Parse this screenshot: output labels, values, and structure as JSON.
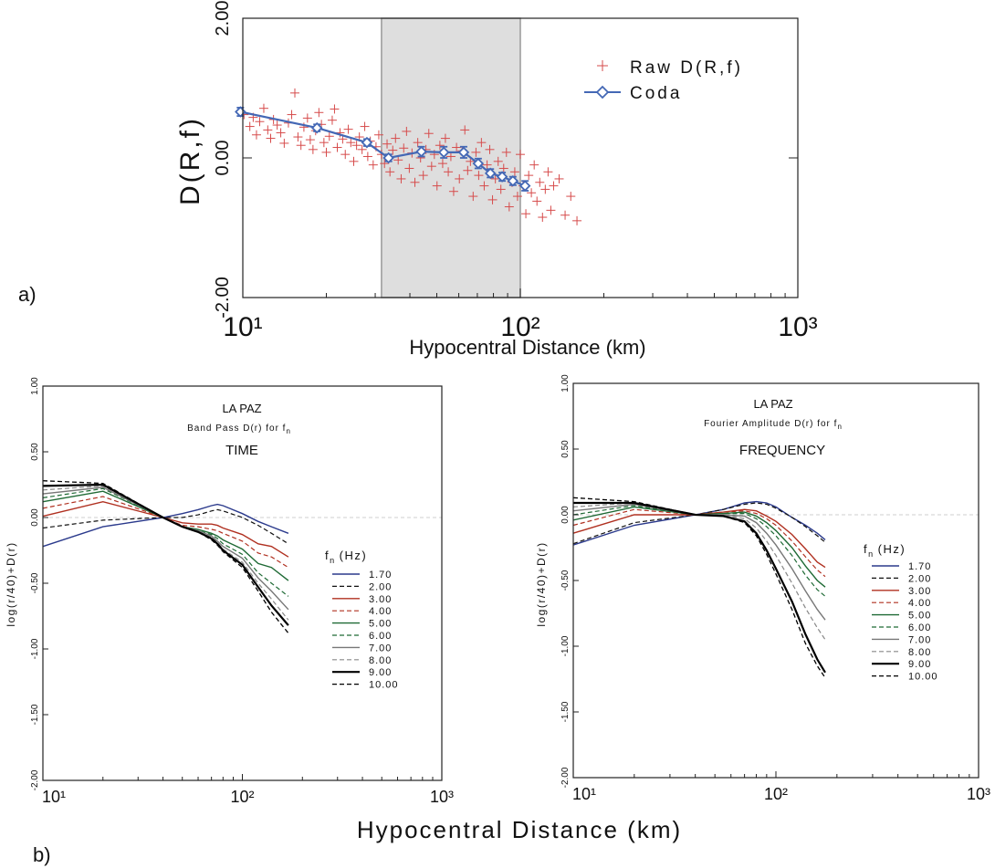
{
  "panel_labels": {
    "a": "a)",
    "b": "b)"
  },
  "chart_data": [
    {
      "type": "scatter",
      "title": "",
      "xlabel": "Hypocentral Distance (km)",
      "ylabel": "D(R,f)",
      "xscale": "log",
      "xlim": [
        10,
        1000
      ],
      "ylim": [
        -2.0,
        2.0
      ],
      "xticks": [
        "10¹",
        "10²",
        "10³"
      ],
      "yticks": [
        "-2.00",
        "0.00",
        "2.00"
      ],
      "shaded_region": [
        31.6,
        100
      ],
      "legend": [
        "Raw D(R,f)",
        "Coda"
      ],
      "series": [
        {
          "name": "Raw D(R,f)",
          "x": [
            10.1,
            10.6,
            10.9,
            11.2,
            11.5,
            11.9,
            12.3,
            12.6,
            12.9,
            13.3,
            13.7,
            14.1,
            14.6,
            15.0,
            15.4,
            15.8,
            16.2,
            16.6,
            17.1,
            17.5,
            17.9,
            18.3,
            18.8,
            19.2,
            19.6,
            20.0,
            20.5,
            21.0,
            21.4,
            21.9,
            22.4,
            22.9,
            23.4,
            24.0,
            24.5,
            25.1,
            25.7,
            26.3,
            26.9,
            27.5,
            28.2,
            28.8,
            29.5,
            30.2,
            30.9,
            31.6,
            32.4,
            33.1,
            33.9,
            34.7,
            35.5,
            36.3,
            37.2,
            38.0,
            38.9,
            39.8,
            40.7,
            41.7,
            42.7,
            43.7,
            44.7,
            45.7,
            46.8,
            47.9,
            49.0,
            50.1,
            51.3,
            52.5,
            53.7,
            55.0,
            56.2,
            57.5,
            58.9,
            60.3,
            61.7,
            63.1,
            64.6,
            66.1,
            67.6,
            69.2,
            70.8,
            72.4,
            74.1,
            75.9,
            77.6,
            79.4,
            81.3,
            83.2,
            85.1,
            87.1,
            89.1,
            91.2,
            93.3,
            95.5,
            97.7,
            100.0,
            102.3,
            104.7,
            107.2,
            109.6,
            112.2,
            114.8,
            117.5,
            120.2,
            123.0,
            125.9,
            128.8,
            131.8,
            138.0,
            145.0,
            152.0,
            160.0
          ],
          "y": [
            0.62,
            0.45,
            0.58,
            0.33,
            0.52,
            0.71,
            0.4,
            0.28,
            0.55,
            0.47,
            0.36,
            0.21,
            0.5,
            0.62,
            0.93,
            0.3,
            0.18,
            0.44,
            0.57,
            0.26,
            0.12,
            0.39,
            0.65,
            0.48,
            0.22,
            0.08,
            0.31,
            0.54,
            0.7,
            0.15,
            0.36,
            0.27,
            0.05,
            0.41,
            0.22,
            -0.05,
            0.18,
            0.3,
            0.12,
            0.45,
            0.02,
            0.24,
            -0.1,
            0.16,
            0.33,
            0.05,
            -0.08,
            0.2,
            -0.2,
            0.11,
            0.28,
            -0.03,
            -0.3,
            0.14,
            0.38,
            -0.15,
            0.07,
            -0.35,
            0.22,
            0.0,
            -0.25,
            0.12,
            0.35,
            -0.12,
            0.05,
            -0.4,
            0.18,
            -0.08,
            0.28,
            -0.2,
            0.02,
            -0.48,
            0.15,
            -0.3,
            0.1,
            0.4,
            -0.18,
            -0.05,
            -0.55,
            0.08,
            -0.25,
            0.22,
            -0.4,
            -0.1,
            0.12,
            -0.6,
            -0.3,
            -0.05,
            -0.45,
            -0.15,
            0.08,
            -0.7,
            -0.35,
            -0.2,
            -0.55,
            0.05,
            -0.4,
            -0.8,
            -0.25,
            -0.5,
            -0.1,
            -0.62,
            -0.35,
            -0.85,
            -0.45,
            -0.2,
            -0.75,
            -0.4,
            -0.3,
            -0.82,
            -0.55,
            -0.9
          ]
        },
        {
          "name": "Coda",
          "x": [
            9.8,
            18.5,
            28.0,
            33.5,
            44.0,
            53.0,
            62.5,
            70.5,
            78.0,
            86.0,
            94.0,
            104.0
          ],
          "y": [
            0.66,
            0.43,
            0.22,
            0.0,
            0.09,
            0.08,
            0.08,
            -0.08,
            -0.22,
            -0.27,
            -0.33,
            -0.4
          ],
          "err": [
            0.06,
            0.05,
            0.05,
            0.05,
            0.07,
            0.08,
            0.08,
            0.07,
            0.06,
            0.06,
            0.06,
            0.07
          ]
        }
      ]
    },
    {
      "type": "line",
      "title": "LA PAZ",
      "subtitle": "Band Pass D(r) for f",
      "subtitle_sub": "n",
      "caption": "TIME",
      "xlabel": "Hypocentral Distance (km)",
      "ylabel": "log(r/40)+D(r)",
      "xscale": "log",
      "xlim": [
        10,
        1000
      ],
      "ylim": [
        -2.0,
        1.0
      ],
      "xticks": [
        "10¹",
        "10²",
        "10³"
      ],
      "yticks": [
        "1.00",
        "0.50",
        "0.00",
        "-0.50",
        "-1.00",
        "-1.50",
        "-2.00"
      ],
      "legend_title": "f",
      "legend_title_sub": "n",
      "legend_title_unit": "(Hz)",
      "x": [
        10,
        20,
        40,
        50,
        60,
        70,
        75,
        80,
        100,
        120,
        140,
        170
      ],
      "series": [
        {
          "name": "1.70",
          "color": "#2b3a8c",
          "dash": "solid",
          "width": 1.4,
          "values": [
            -0.22,
            -0.07,
            0.0,
            0.03,
            0.06,
            0.09,
            0.1,
            0.09,
            0.03,
            -0.03,
            -0.07,
            -0.12
          ]
        },
        {
          "name": "2.00",
          "color": "#111111",
          "dash": "dashed",
          "width": 1.2,
          "values": [
            -0.08,
            -0.02,
            0.0,
            0.0,
            0.02,
            0.05,
            0.06,
            0.05,
            0.0,
            -0.06,
            -0.12,
            -0.2
          ]
        },
        {
          "name": "3.00",
          "color": "#b03020",
          "dash": "solid",
          "width": 1.4,
          "values": [
            0.01,
            0.12,
            0.0,
            -0.04,
            -0.05,
            -0.05,
            -0.06,
            -0.08,
            -0.13,
            -0.2,
            -0.22,
            -0.3
          ]
        },
        {
          "name": "4.00",
          "color": "#b03020",
          "dash": "dashed",
          "width": 1.2,
          "values": [
            0.07,
            0.16,
            0.0,
            -0.06,
            -0.07,
            -0.09,
            -0.1,
            -0.12,
            -0.18,
            -0.27,
            -0.3,
            -0.38
          ]
        },
        {
          "name": "5.00",
          "color": "#1f6a35",
          "dash": "solid",
          "width": 1.4,
          "values": [
            0.12,
            0.2,
            0.0,
            -0.07,
            -0.09,
            -0.12,
            -0.14,
            -0.17,
            -0.24,
            -0.35,
            -0.38,
            -0.48
          ]
        },
        {
          "name": "6.00",
          "color": "#1f6a35",
          "dash": "dashed",
          "width": 1.2,
          "values": [
            0.15,
            0.22,
            0.0,
            -0.07,
            -0.1,
            -0.13,
            -0.16,
            -0.2,
            -0.28,
            -0.42,
            -0.5,
            -0.6
          ]
        },
        {
          "name": "7.00",
          "color": "#777777",
          "dash": "solid",
          "width": 1.4,
          "values": [
            0.18,
            0.23,
            0.0,
            -0.07,
            -0.1,
            -0.14,
            -0.18,
            -0.22,
            -0.31,
            -0.46,
            -0.56,
            -0.7
          ]
        },
        {
          "name": "8.00",
          "color": "#888888",
          "dash": "dashed",
          "width": 1.2,
          "values": [
            0.21,
            0.24,
            0.0,
            -0.07,
            -0.1,
            -0.15,
            -0.19,
            -0.24,
            -0.34,
            -0.5,
            -0.62,
            -0.78
          ]
        },
        {
          "name": "9.00",
          "color": "#000000",
          "dash": "solid",
          "width": 2.2,
          "values": [
            0.24,
            0.25,
            0.0,
            -0.07,
            -0.11,
            -0.16,
            -0.2,
            -0.25,
            -0.36,
            -0.53,
            -0.67,
            -0.82
          ]
        },
        {
          "name": "10.00",
          "color": "#000000",
          "dash": "dashed",
          "width": 1.3,
          "values": [
            0.28,
            0.26,
            0.0,
            -0.07,
            -0.11,
            -0.17,
            -0.21,
            -0.26,
            -0.38,
            -0.56,
            -0.72,
            -0.88
          ]
        }
      ]
    },
    {
      "type": "line",
      "title": "LA PAZ",
      "subtitle": "Fourier Amplitude D(r) for f",
      "subtitle_sub": "n",
      "caption": "FREQUENCY",
      "xlabel": "Hypocentral Distance (km)",
      "ylabel": "log(r/40)+D(r)",
      "xscale": "log",
      "xlim": [
        10,
        1000
      ],
      "ylim": [
        -2.0,
        1.0
      ],
      "xticks": [
        "10¹",
        "10²",
        "10³"
      ],
      "yticks": [
        "1.00",
        "0.50",
        "0.00",
        "-0.50",
        "-1.00",
        "-1.50",
        "-2.00"
      ],
      "legend_title": "f",
      "legend_title_sub": "n",
      "legend_title_unit": "(Hz)",
      "x": [
        10,
        20,
        40,
        55,
        70,
        80,
        90,
        100,
        120,
        140,
        160,
        175
      ],
      "series": [
        {
          "name": "1.70",
          "color": "#2b3a8c",
          "dash": "solid",
          "width": 1.4,
          "values": [
            -0.23,
            -0.08,
            0.0,
            0.04,
            0.09,
            0.1,
            0.09,
            0.06,
            -0.02,
            -0.08,
            -0.14,
            -0.19
          ]
        },
        {
          "name": "2.00",
          "color": "#111111",
          "dash": "dashed",
          "width": 1.2,
          "values": [
            -0.22,
            -0.06,
            0.0,
            0.04,
            0.08,
            0.09,
            0.08,
            0.05,
            -0.02,
            -0.09,
            -0.16,
            -0.21
          ]
        },
        {
          "name": "3.00",
          "color": "#b03020",
          "dash": "solid",
          "width": 1.4,
          "values": [
            -0.14,
            0.0,
            0.0,
            0.02,
            0.04,
            0.03,
            -0.01,
            -0.05,
            -0.15,
            -0.26,
            -0.36,
            -0.4
          ]
        },
        {
          "name": "4.00",
          "color": "#b03020",
          "dash": "dashed",
          "width": 1.2,
          "values": [
            -0.08,
            0.04,
            0.0,
            0.02,
            0.03,
            0.01,
            -0.03,
            -0.08,
            -0.2,
            -0.32,
            -0.42,
            -0.47
          ]
        },
        {
          "name": "5.00",
          "color": "#1f6a35",
          "dash": "solid",
          "width": 1.4,
          "values": [
            -0.04,
            0.06,
            0.0,
            0.01,
            0.02,
            -0.01,
            -0.06,
            -0.12,
            -0.25,
            -0.39,
            -0.5,
            -0.55
          ]
        },
        {
          "name": "6.00",
          "color": "#1f6a35",
          "dash": "dashed",
          "width": 1.2,
          "values": [
            0.0,
            0.07,
            0.0,
            0.01,
            0.01,
            -0.03,
            -0.09,
            -0.16,
            -0.31,
            -0.46,
            -0.57,
            -0.62
          ]
        },
        {
          "name": "7.00",
          "color": "#777777",
          "dash": "solid",
          "width": 1.4,
          "values": [
            0.03,
            0.08,
            0.0,
            0.0,
            -0.01,
            -0.06,
            -0.14,
            -0.23,
            -0.41,
            -0.58,
            -0.72,
            -0.8
          ]
        },
        {
          "name": "8.00",
          "color": "#888888",
          "dash": "dashed",
          "width": 1.2,
          "values": [
            0.06,
            0.09,
            0.0,
            0.0,
            -0.03,
            -0.1,
            -0.2,
            -0.31,
            -0.52,
            -0.71,
            -0.86,
            -0.95
          ]
        },
        {
          "name": "9.00",
          "color": "#000000",
          "dash": "solid",
          "width": 2.2,
          "values": [
            0.09,
            0.09,
            0.0,
            -0.01,
            -0.05,
            -0.14,
            -0.27,
            -0.41,
            -0.66,
            -0.91,
            -1.1,
            -1.2
          ]
        },
        {
          "name": "10.00",
          "color": "#000000",
          "dash": "dashed",
          "width": 1.3,
          "values": [
            0.13,
            0.1,
            0.0,
            -0.01,
            -0.06,
            -0.16,
            -0.3,
            -0.45,
            -0.72,
            -0.98,
            -1.15,
            -1.24
          ]
        }
      ]
    }
  ],
  "shared_xlabel_bottom": "Hypocentral Distance (km)"
}
